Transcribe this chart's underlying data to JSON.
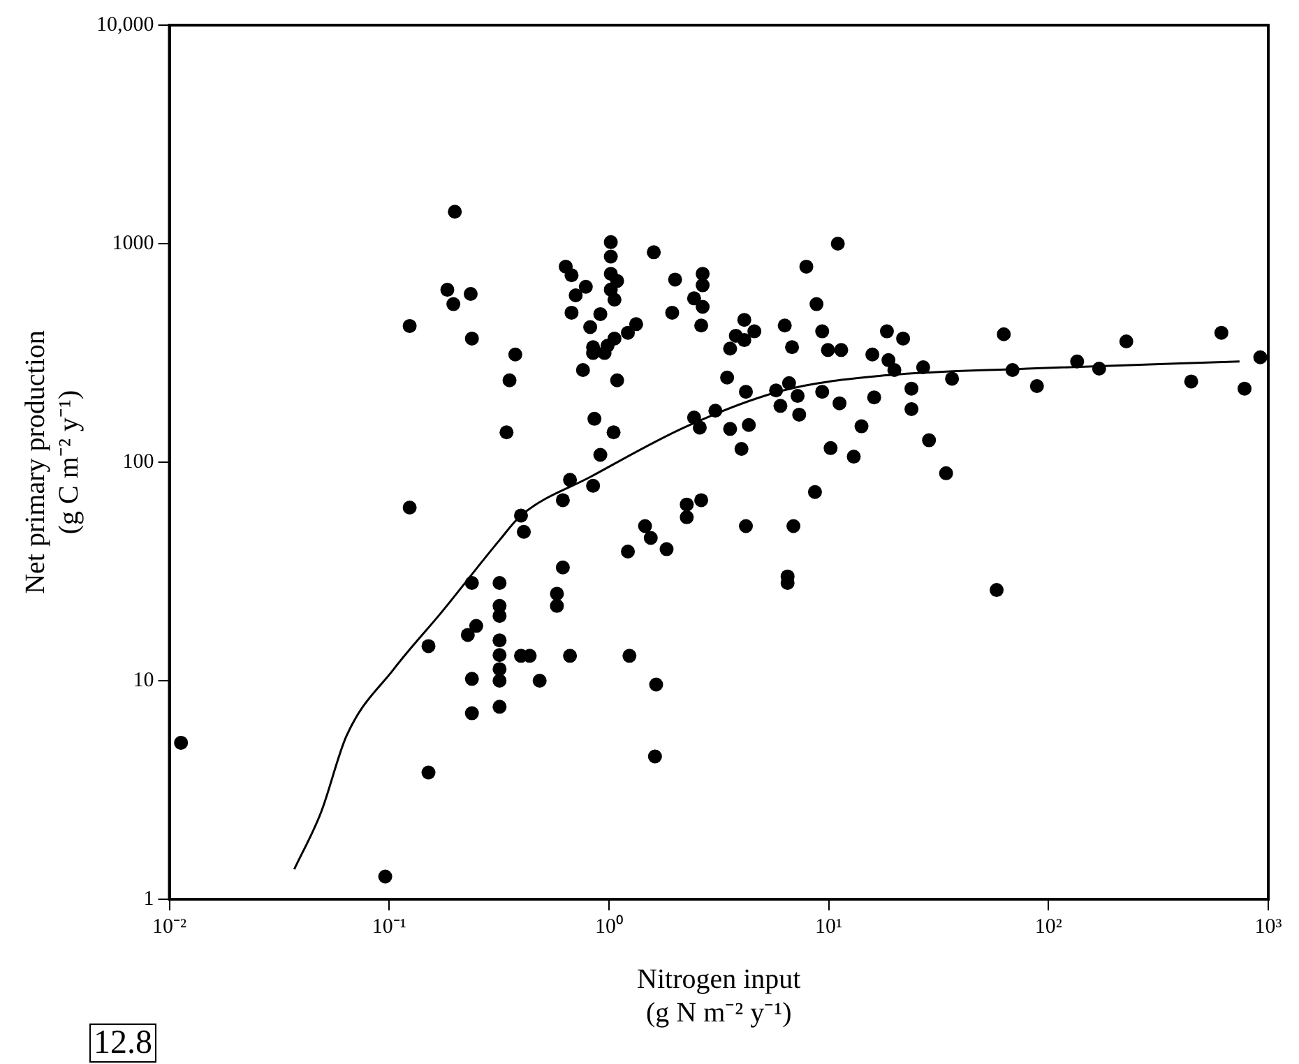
{
  "chart_data": {
    "type": "scatter",
    "xlabel": "Nitrogen input\n(g N m⁻² y⁻¹)",
    "ylabel": "Net primary production\n(g C m⁻² y⁻¹)",
    "annotations": [
      "12.8"
    ],
    "log": "xy",
    "grid": false,
    "legend": false,
    "marker": "circle",
    "xlim": [
      0.01,
      1000
    ],
    "xticks": [
      {
        "value": 0.01,
        "label": "10⁻²"
      },
      {
        "value": 0.1,
        "label": "10⁻¹"
      },
      {
        "value": 1,
        "label": "10⁰"
      },
      {
        "value": 10,
        "label": "10¹"
      },
      {
        "value": 100,
        "label": "10²"
      },
      {
        "value": 1000,
        "label": "10³"
      }
    ],
    "ylim": [
      1,
      10000
    ],
    "yticks": [
      1,
      10,
      100,
      1000,
      {
        "value": 10000,
        "label": "10,000"
      }
    ],
    "series": [
      {
        "type": "scatter",
        "color": "#000000",
        "x": [
          0.0113,
          0.096,
          0.124,
          0.124,
          0.151,
          0.151,
          0.199,
          0.184,
          0.196,
          0.235,
          0.238,
          0.375,
          0.353,
          0.342,
          0.238,
          0.249,
          0.228,
          0.238,
          0.238,
          0.318,
          0.318,
          0.318,
          0.318,
          0.318,
          0.318,
          0.318,
          0.318,
          1.02,
          1.02,
          0.636,
          0.676,
          0.785,
          0.706,
          0.676,
          1.02,
          1.09,
          1.02,
          1.06,
          0.914,
          0.822,
          1.33,
          1.22,
          1.06,
          0.985,
          0.847,
          0.955,
          0.847,
          0.762,
          1.09,
          1.6,
          2.0,
          1.94,
          2.67,
          2.67,
          2.44,
          2.67,
          2.63,
          4.13,
          4.59,
          3.78,
          4.13,
          3.56,
          3.45,
          4.2,
          6.31,
          6.81,
          7.91,
          11.0,
          8.8,
          9.34,
          9.92,
          11.4,
          15.8,
          5.76,
          6.6,
          6.03,
          7.22,
          7.34,
          9.34,
          11.2,
          16.1,
          14.1,
          10.2,
          13.0,
          8.66,
          3.05,
          2.44,
          2.59,
          3.56,
          4.33,
          4.01,
          0.859,
          1.05,
          0.914,
          0.665,
          0.847,
          0.617,
          0.398,
          2.63,
          2.26,
          2.26,
          1.46,
          4.2,
          6.91,
          0.41,
          1.55,
          1.83,
          1.22,
          0.617,
          0.58,
          0.58,
          0.398,
          0.436,
          0.484,
          0.665,
          1.24,
          1.64,
          1.62,
          6.5,
          6.5,
          18.4,
          21.8,
          62.6,
          18.7,
          19.9,
          26.9,
          36.4,
          23.8,
          23.8,
          28.6,
          34.2,
          68.6,
          88.6,
          135,
          170,
          226,
          446,
          612,
          780,
          920,
          58.1
        ],
        "values": [
          5.2,
          1.27,
          62,
          420,
          14.4,
          3.8,
          1400,
          615,
          529,
          589,
          368,
          311,
          237,
          137,
          28,
          17.8,
          16.2,
          10.2,
          7.1,
          28,
          22,
          19.8,
          15.3,
          13.1,
          11.3,
          10,
          7.6,
          1016,
          873,
          785,
          717,
          635,
          580,
          483,
          728,
          675,
          616,
          554,
          476,
          415,
          428,
          391,
          368,
          341,
          336,
          316,
          316,
          264,
          237,
          913,
          685,
          483,
          728,
          645,
          562,
          514,
          422,
          448,
          397,
          379,
          362,
          331,
          244,
          210,
          422,
          336,
          785,
          1000,
          529,
          397,
          326,
          326,
          311,
          213,
          230,
          181,
          201,
          165,
          210,
          186,
          198,
          146,
          116,
          106,
          73,
          172,
          160,
          144,
          142,
          148,
          115,
          158,
          137,
          108,
          83,
          78,
          67,
          57,
          67,
          64,
          56,
          51,
          51,
          51,
          48,
          45,
          40,
          39,
          33,
          25,
          22,
          13,
          13,
          10,
          13,
          13,
          9.6,
          4.5,
          30,
          28,
          397,
          368,
          385,
          293,
          264,
          272,
          241,
          217,
          175,
          126,
          89,
          264,
          223,
          289,
          268,
          357,
          234,
          391,
          217,
          302,
          26
        ]
      },
      {
        "type": "line",
        "color": "#000000",
        "marker": "none",
        "x": [
          0.037,
          0.049,
          0.064,
          0.105,
          0.174,
          0.318,
          0.398,
          0.83,
          2.26,
          6.2,
          17,
          80,
          740
        ],
        "values": [
          1.37,
          2.5,
          5.6,
          11.3,
          20.7,
          44,
          57,
          86,
          146,
          213,
          248,
          268,
          289
        ]
      }
    ]
  }
}
